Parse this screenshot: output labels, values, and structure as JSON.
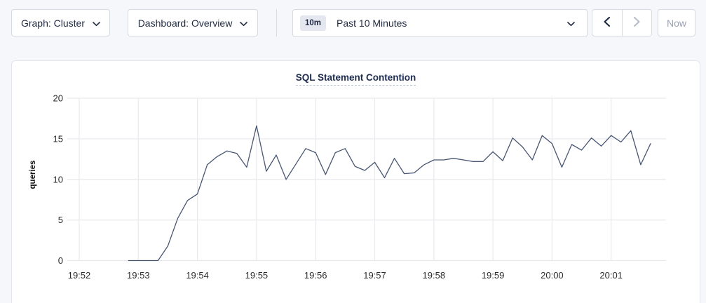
{
  "toolbar": {
    "graph_dropdown_label": "Graph: Cluster",
    "dashboard_dropdown_label": "Dashboard: Overview",
    "time_badge": "10m",
    "time_label": "Past 10 Minutes",
    "now_label": "Now"
  },
  "chart": {
    "title": "SQL Statement Contention"
  },
  "colors": {
    "accent_navy": "#1f2940",
    "disabled_gray": "#9aa2b2",
    "grid": "#e9eaee",
    "axis_text": "#2b2b2b",
    "line": "#485672",
    "page_bg": "#f5f7fa"
  },
  "chart_data": {
    "type": "line",
    "title": "SQL Statement Contention",
    "xlabel": "",
    "ylabel": "queries",
    "ylim": [
      0,
      20
    ],
    "y_ticks": [
      0,
      5,
      10,
      15,
      20
    ],
    "x_ticks": [
      "19:52",
      "19:53",
      "19:54",
      "19:55",
      "19:56",
      "19:57",
      "19:58",
      "19:59",
      "20:00",
      "20:01"
    ],
    "grid": true,
    "legend": "none",
    "series": [
      {
        "name": "queries",
        "color": "#485672",
        "points": [
          [
            "19:52:50",
            0
          ],
          [
            "19:53:00",
            0
          ],
          [
            "19:53:10",
            0
          ],
          [
            "19:53:20",
            0
          ],
          [
            "19:53:30",
            1.8
          ],
          [
            "19:53:40",
            5.2
          ],
          [
            "19:53:50",
            7.4
          ],
          [
            "19:54:00",
            8.2
          ],
          [
            "19:54:10",
            11.8
          ],
          [
            "19:54:20",
            12.8
          ],
          [
            "19:54:30",
            13.5
          ],
          [
            "19:54:40",
            13.2
          ],
          [
            "19:54:50",
            11.5
          ],
          [
            "19:55:00",
            16.6
          ],
          [
            "19:55:10",
            11.0
          ],
          [
            "19:55:20",
            13.0
          ],
          [
            "19:55:30",
            10.0
          ],
          [
            "19:55:40",
            11.9
          ],
          [
            "19:55:50",
            13.8
          ],
          [
            "19:56:00",
            13.3
          ],
          [
            "19:56:10",
            10.6
          ],
          [
            "19:56:20",
            13.3
          ],
          [
            "19:56:30",
            13.8
          ],
          [
            "19:56:40",
            11.6
          ],
          [
            "19:56:50",
            11.1
          ],
          [
            "19:57:00",
            12.1
          ],
          [
            "19:57:10",
            10.2
          ],
          [
            "19:57:20",
            12.6
          ],
          [
            "19:57:30",
            10.7
          ],
          [
            "19:57:40",
            10.8
          ],
          [
            "19:57:50",
            11.8
          ],
          [
            "19:58:00",
            12.4
          ],
          [
            "19:58:10",
            12.4
          ],
          [
            "19:58:20",
            12.6
          ],
          [
            "19:58:30",
            12.4
          ],
          [
            "19:58:40",
            12.2
          ],
          [
            "19:58:50",
            12.2
          ],
          [
            "19:59:00",
            13.4
          ],
          [
            "19:59:10",
            12.3
          ],
          [
            "19:59:20",
            15.1
          ],
          [
            "19:59:30",
            14.0
          ],
          [
            "19:59:40",
            12.4
          ],
          [
            "19:59:50",
            15.4
          ],
          [
            "20:00:00",
            14.4
          ],
          [
            "20:00:10",
            11.5
          ],
          [
            "20:00:20",
            14.3
          ],
          [
            "20:00:30",
            13.6
          ],
          [
            "20:00:40",
            15.1
          ],
          [
            "20:00:50",
            14.1
          ],
          [
            "20:01:00",
            15.4
          ],
          [
            "20:01:10",
            14.6
          ],
          [
            "20:01:20",
            16.0
          ],
          [
            "20:01:30",
            11.8
          ],
          [
            "20:01:40",
            14.4
          ]
        ]
      }
    ]
  }
}
